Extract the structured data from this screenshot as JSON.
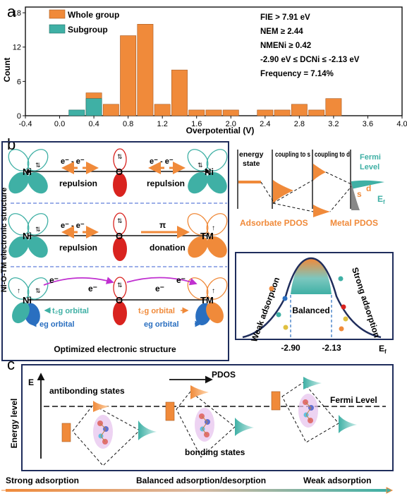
{
  "panel_a": {
    "letter": "a",
    "legend": {
      "whole": "Whole group",
      "sub": "Subgroup"
    },
    "criteria": [
      "FIE > 7.91 eV",
      "NEM ≥ 2.44",
      "NMENi ≥ 0.42",
      "-2.90 eV ≤ DCNi ≤ -2.13 eV",
      "Frequency = 7.14%"
    ],
    "ylabel": "Count",
    "xlabel": "Overpotential (V)",
    "xticks": [
      "-0.4",
      "0.0",
      "0.4",
      "0.8",
      "1.2",
      "1.6",
      "2.0",
      "2.4",
      "2.8",
      "3.2",
      "3.6",
      "4.0"
    ],
    "yticks": [
      "0",
      "6",
      "12",
      "18"
    ]
  },
  "chart_data": {
    "type": "bar",
    "xlabel": "Overpotential (V)",
    "ylabel": "Count",
    "xlim": [
      -0.4,
      4.0
    ],
    "ylim": [
      0,
      19
    ],
    "bin_width": 0.2,
    "series": [
      {
        "name": "Whole group",
        "x": [
          0.4,
          0.6,
          0.8,
          1.0,
          1.2,
          1.4,
          1.6,
          1.8,
          2.0,
          2.4,
          2.6,
          2.8,
          3.0,
          3.2
        ],
        "values": [
          4,
          2,
          14,
          16,
          2,
          8,
          1,
          1,
          1,
          1,
          1,
          2,
          1,
          3
        ]
      },
      {
        "name": "Subgroup",
        "x": [
          0.2,
          0.4
        ],
        "values": [
          1,
          3
        ]
      }
    ]
  },
  "panel_b": {
    "letter": "b",
    "side_label": "Ni-O-TM electronic structure",
    "row1": {
      "left_atom": "Ni",
      "center": "O",
      "right_atom": "Ni",
      "ee_left": "e⁻ - e⁻",
      "ee_right": "e⁻ - e⁻",
      "rep_left": "repulsion",
      "rep_right": "repulsion"
    },
    "row2": {
      "left_atom": "Ni",
      "center": "O",
      "right_atom": "TM",
      "ee": "e⁻ - e⁻",
      "pi": "π",
      "rep": "repulsion",
      "don": "donation"
    },
    "row3": {
      "left_atom": "Ni",
      "center": "O",
      "right_atom": "TM",
      "e1": "e⁻",
      "e2": "e⁻",
      "e3": "e⁻",
      "e4": "e⁻",
      "t2g_left": "t₂g orbital",
      "t2g_right": "t₂g orbital",
      "eg_left": "eg orbital",
      "eg_right": "eg orbital"
    },
    "caption": "Optimized electronic structure",
    "pdos_headers": [
      "energy state",
      "coupling to s",
      "coupling to d"
    ],
    "fermi": "Fermi Level",
    "s": "s",
    "d": "d",
    "ef": "Ef",
    "adsorbate_pdos": "Adsorbate PDOS",
    "metal_pdos": "Metal PDOS",
    "weak": "Weak adsorption",
    "strong": "Strong adsorption",
    "balanced": "Balanced",
    "tick1": "-2.90",
    "tick2": "-2.13",
    "xaxis": "Ef"
  },
  "panel_c": {
    "letter": "c",
    "ylabel": "Energy level",
    "e": "E",
    "pdos": "PDOS",
    "antibonding": "antibonding states",
    "fermi": "Fermi Level",
    "bonding": "bonding states",
    "strong": "Strong adsorption",
    "balanced": "Balanced adsorption/desorption",
    "weak": "Weak adsorption"
  },
  "colors": {
    "orange": "#f08a3a",
    "teal": "#3fb0a5",
    "navy": "#1f2d5c",
    "red": "#d9231f",
    "blue": "#2a6fc0"
  }
}
